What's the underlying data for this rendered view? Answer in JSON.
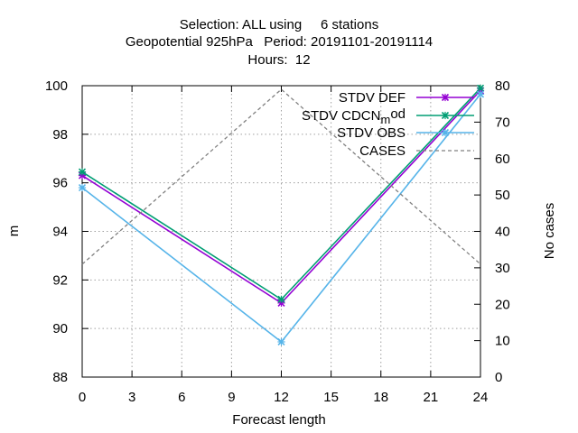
{
  "chart_data": {
    "type": "line",
    "title_lines": [
      "Selection: ALL using     6 stations",
      "Geopotential 925hPa   Period: 20191101-20191114",
      "Hours:  12"
    ],
    "xlabel": "Forecast length",
    "ylabel": "m",
    "y2label": "No cases",
    "x": [
      0,
      12,
      24
    ],
    "xticks": [
      0,
      3,
      6,
      9,
      12,
      15,
      18,
      21,
      24
    ],
    "xlim": [
      0,
      24
    ],
    "ylim": [
      88,
      100
    ],
    "yticks": [
      88,
      90,
      92,
      94,
      96,
      98,
      100
    ],
    "y2lim": [
      0,
      80
    ],
    "y2ticks": [
      0,
      10,
      20,
      30,
      40,
      50,
      60,
      70,
      80
    ],
    "grid": true,
    "legend_position": "top-right",
    "series": [
      {
        "name": "STDV DEF",
        "axis": "y1",
        "values": [
          96.3,
          91.05,
          99.8
        ],
        "color": "#9400d3",
        "marker": "x",
        "dash": false
      },
      {
        "name": "STDV CDCN_mod",
        "legend_base": "STDV CDCN",
        "legend_sub": "m",
        "legend_tail": "od",
        "axis": "y1",
        "values": [
          96.45,
          91.2,
          99.9
        ],
        "color": "#009e73",
        "marker": "x",
        "dash": false
      },
      {
        "name": "STDV OBS",
        "axis": "y1",
        "values": [
          95.8,
          89.45,
          99.65
        ],
        "color": "#56b4e9",
        "marker": "x",
        "dash": false
      },
      {
        "name": "CASES",
        "axis": "y2",
        "values": [
          31,
          79,
          31
        ],
        "color": "#808080",
        "marker": "none",
        "dash": true
      }
    ]
  }
}
